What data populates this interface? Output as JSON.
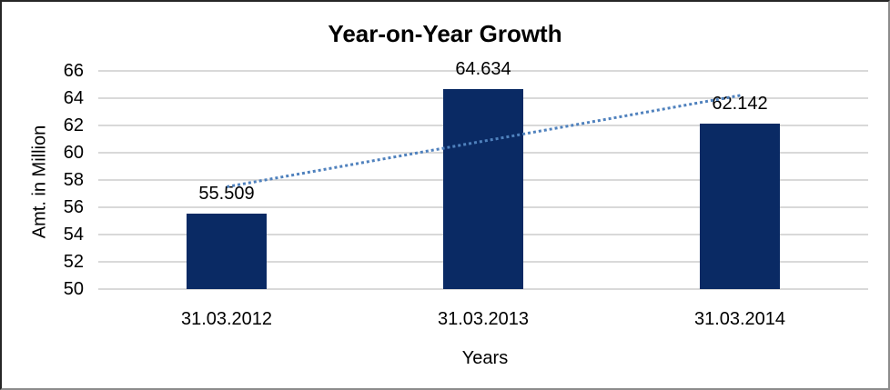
{
  "window": {
    "background": "#ffffff",
    "border_top_left_color": "#262626",
    "border_bottom_right_color": "#8c8c8c"
  },
  "chart_data": {
    "type": "bar",
    "title": "Year-on-Year Growth",
    "categories": [
      "31.03.2012",
      "31.03.2013",
      "31.03.2014"
    ],
    "values": [
      55.509,
      64.634,
      62.142
    ],
    "data_labels": [
      "55.509",
      "64.634",
      "62.142"
    ],
    "xlabel": "Years",
    "ylabel": "Amt. in Million",
    "ylim": [
      50,
      66
    ],
    "yticks": [
      50,
      52,
      54,
      56,
      58,
      60,
      62,
      64,
      66
    ],
    "grid": true,
    "legend": "none",
    "bar_color": "#0a2a64",
    "gridline_color": "#d9d9d9",
    "text_color": "#000000",
    "trendline": {
      "type": "linear",
      "style": "dotted",
      "color": "#4f81bd",
      "start_value": 57.6,
      "end_value": 64.3
    }
  }
}
